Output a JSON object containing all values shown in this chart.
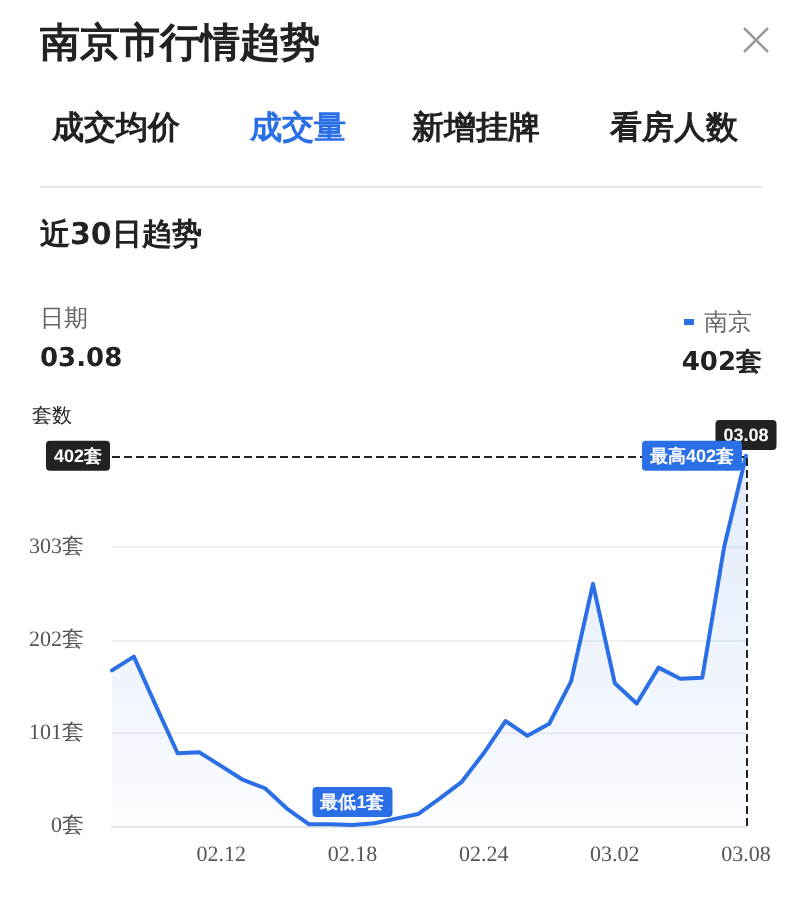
{
  "chart_data": {
    "type": "area",
    "title": "南京市行情趋势",
    "subtitle": "近30日趋势",
    "ylabel": "套数",
    "annotations": [
      "成交均价",
      "成交量",
      "新增挂牌",
      "看房人数",
      "日期",
      "03.08",
      "402套",
      {
        "text": "最低1套",
        "x": "02.18",
        "y": 1
      },
      {
        "text": "最高402套",
        "x": "03.08",
        "y": 402
      }
    ],
    "categories": [
      null,
      null,
      null,
      null,
      null,
      "02.12",
      null,
      null,
      null,
      null,
      null,
      "02.18",
      null,
      null,
      null,
      null,
      null,
      "02.24",
      null,
      null,
      null,
      null,
      null,
      "03.02",
      null,
      null,
      null,
      null,
      null,
      "03.08"
    ],
    "series": [
      {
        "name": "南京",
        "color": "#2b6fe6",
        "values": [
          169,
          184,
          131,
          79,
          80,
          65,
          50,
          41,
          19,
          2,
          2,
          1,
          3,
          8,
          13,
          30,
          48,
          79,
          114,
          98,
          111,
          157,
          263,
          155,
          133,
          172,
          160,
          161,
          303,
          402
        ]
      }
    ],
    "ylim": [
      0,
      404
    ],
    "yticks": [
      {
        "value": 0,
        "label": "0套"
      },
      {
        "value": 101,
        "label": "101套"
      },
      {
        "value": 202,
        "label": "202套"
      },
      {
        "value": 303,
        "label": "303套"
      }
    ],
    "ref_lines": [
      {
        "axis": "y",
        "value": 402,
        "label": "402套",
        "color": "#222222",
        "line_style": "dashed"
      },
      {
        "axis": "x",
        "value": "03.08",
        "label": "03.08",
        "color": "#222222",
        "line_style": "dashed"
      }
    ],
    "grid": "y",
    "legend": "top right",
    "marker": "none",
    "line_style": "solid"
  }
}
